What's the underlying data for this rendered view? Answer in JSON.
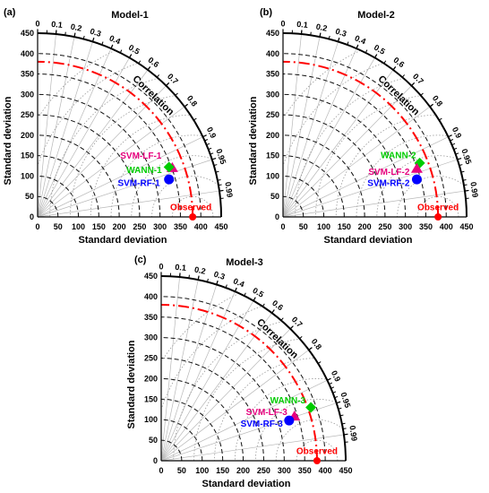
{
  "chart_data": [
    {
      "type": "scatter",
      "panel_label": "(a)",
      "title": "Model-1",
      "xlabel": "Standard deviation",
      "ylabel": "Standard deviation",
      "arc_label": "Correlation",
      "xlim": [
        0,
        450
      ],
      "ylim": [
        0,
        450
      ],
      "sd_ticks": [
        0,
        50,
        100,
        150,
        200,
        250,
        300,
        350,
        400,
        450
      ],
      "correlation_ticks": [
        "0",
        "0.1",
        "0.2",
        "0.3",
        "0.4",
        "0.5",
        "0.6",
        "0.7",
        "0.8",
        "0.9",
        "0.95",
        "0.99"
      ],
      "observed_sd": 380,
      "points": [
        {
          "label": "Observed",
          "x": 380,
          "y": 0,
          "marker": "circle",
          "color": "#ff0000"
        },
        {
          "label": "SVM-LF-1",
          "x": 330,
          "y": 120,
          "marker": "triangle",
          "color": "#e6007e"
        },
        {
          "label": "WANN-1",
          "x": 322,
          "y": 122,
          "marker": "diamond",
          "color": "#00cc00"
        },
        {
          "label": "SVM-RF-1",
          "x": 322,
          "y": 92,
          "marker": "circle",
          "color": "#0000ff"
        }
      ]
    },
    {
      "type": "scatter",
      "panel_label": "(b)",
      "title": "Model-2",
      "xlabel": "Standard deviation",
      "ylabel": "Standard deviation",
      "arc_label": "Correlation",
      "xlim": [
        0,
        450
      ],
      "ylim": [
        0,
        450
      ],
      "sd_ticks": [
        0,
        50,
        100,
        150,
        200,
        250,
        300,
        350,
        400,
        450
      ],
      "correlation_ticks": [
        "0",
        "0.1",
        "0.2",
        "0.3",
        "0.4",
        "0.5",
        "0.6",
        "0.7",
        "0.8",
        "0.9",
        "0.95",
        "0.99"
      ],
      "observed_sd": 380,
      "points": [
        {
          "label": "Observed",
          "x": 380,
          "y": 0,
          "marker": "circle",
          "color": "#ff0000"
        },
        {
          "label": "WANN-2",
          "x": 335,
          "y": 132,
          "marker": "diamond",
          "color": "#00cc00"
        },
        {
          "label": "SVM-LF-2",
          "x": 328,
          "y": 118,
          "marker": "triangle",
          "color": "#e6007e"
        },
        {
          "label": "SVM-RF-2",
          "x": 328,
          "y": 92,
          "marker": "circle",
          "color": "#0000ff"
        }
      ]
    },
    {
      "type": "scatter",
      "panel_label": "(c)",
      "title": "Model-3",
      "xlabel": "Standard deviation",
      "ylabel": "Standard deviation",
      "arc_label": "Correlation",
      "xlim": [
        0,
        450
      ],
      "ylim": [
        0,
        450
      ],
      "sd_ticks": [
        0,
        50,
        100,
        150,
        200,
        250,
        300,
        350,
        400,
        450
      ],
      "correlation_ticks": [
        "0",
        "0.1",
        "0.2",
        "0.3",
        "0.4",
        "0.5",
        "0.6",
        "0.7",
        "0.8",
        "0.9",
        "0.95",
        "0.99"
      ],
      "observed_sd": 380,
      "points": [
        {
          "label": "Observed",
          "x": 380,
          "y": 0,
          "marker": "circle",
          "color": "#ff0000"
        },
        {
          "label": "WANN-3",
          "x": 365,
          "y": 130,
          "marker": "diamond",
          "color": "#00cc00"
        },
        {
          "label": "SVM-LF-3",
          "x": 325,
          "y": 108,
          "marker": "triangle",
          "color": "#e6007e"
        },
        {
          "label": "SVM-RF-3",
          "x": 312,
          "y": 98,
          "marker": "circle",
          "color": "#0000ff"
        }
      ]
    }
  ]
}
